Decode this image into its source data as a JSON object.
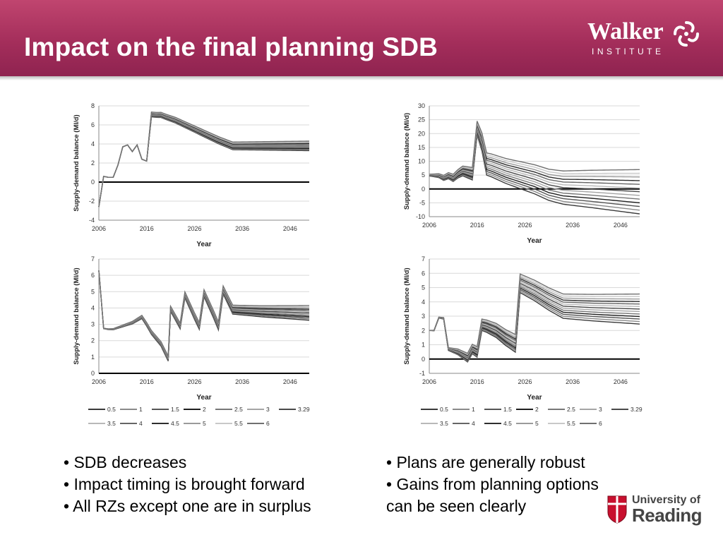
{
  "title": "Impact on the final planning SDB",
  "logos": {
    "walker_name": "Walker",
    "walker_sub": "INSTITUTE",
    "reading_line1": "University of",
    "reading_line2": "Reading"
  },
  "bullets_left": [
    "• SDB decreases",
    "• Impact timing is brought forward",
    "• All RZs except one are in surplus"
  ],
  "bullets_right": [
    "• Plans are generally robust",
    "• Gains from planning options",
    "can be seen clearly"
  ],
  "legend_labels": [
    "0.5",
    "1",
    "1.5",
    "2",
    "2.5",
    "3",
    "3.29",
    "3.5",
    "4",
    "4.5",
    "5",
    "5.5",
    "6"
  ],
  "chart_data": [
    {
      "type": "line",
      "xlabel": "Year",
      "ylabel": "Supply-demand balance (Ml/d)",
      "xlim": [
        2006,
        2050
      ],
      "ylim": [
        -4,
        8
      ],
      "yticks": [
        -4,
        -2,
        0,
        2,
        4,
        6,
        8
      ],
      "xticks": [
        2006,
        2016,
        2026,
        2036,
        2046
      ],
      "base": [
        [
          2006,
          -2.6
        ],
        [
          2007,
          0.6
        ],
        [
          2008,
          0.5
        ],
        [
          2009,
          0.5
        ],
        [
          2010,
          1.8
        ],
        [
          2011,
          3.7
        ],
        [
          2012,
          3.9
        ],
        [
          2013,
          3.2
        ],
        [
          2014,
          3.9
        ],
        [
          2015,
          2.4
        ],
        [
          2016,
          2.2
        ],
        [
          2017,
          7.1
        ],
        [
          2018,
          7.05
        ],
        [
          2019,
          7.05
        ],
        [
          2020,
          6.85
        ],
        [
          2022,
          6.5
        ],
        [
          2025,
          5.8
        ],
        [
          2028,
          5.1
        ],
        [
          2031,
          4.4
        ],
        [
          2034,
          3.8
        ],
        [
          2040,
          3.8
        ],
        [
          2045,
          3.8
        ],
        [
          2050,
          3.8
        ]
      ],
      "spread": [
        [
          2006,
          0
        ],
        [
          2016,
          0
        ],
        [
          2017,
          0.5
        ],
        [
          2034,
          0.8
        ],
        [
          2050,
          1.0
        ]
      ]
    },
    {
      "type": "line",
      "xlabel": "Year",
      "ylabel": "Supply-demand balance (Ml/d)",
      "xlim": [
        2006,
        2050
      ],
      "ylim": [
        -10,
        30
      ],
      "yticks": [
        -10,
        -5,
        0,
        5,
        10,
        15,
        20,
        25,
        30
      ],
      "xticks": [
        2006,
        2016,
        2026,
        2036,
        2046
      ],
      "base": [
        [
          2006,
          5
        ],
        [
          2008,
          4.8
        ],
        [
          2009,
          4
        ],
        [
          2010,
          4.8
        ],
        [
          2011,
          4
        ],
        [
          2012,
          5.5
        ],
        [
          2013,
          6.5
        ],
        [
          2014,
          6
        ],
        [
          2015,
          5.5
        ],
        [
          2016,
          22
        ],
        [
          2017,
          17
        ],
        [
          2018,
          9
        ],
        [
          2019,
          8.5
        ],
        [
          2022,
          6.5
        ],
        [
          2025,
          5
        ],
        [
          2028,
          3.5
        ],
        [
          2031,
          1.5
        ],
        [
          2034,
          0.5
        ],
        [
          2040,
          0
        ],
        [
          2045,
          -0.5
        ],
        [
          2050,
          -1
        ]
      ],
      "spread": [
        [
          2006,
          0.6
        ],
        [
          2012,
          3
        ],
        [
          2016,
          5
        ],
        [
          2018,
          8
        ],
        [
          2034,
          12
        ],
        [
          2050,
          16
        ]
      ]
    },
    {
      "type": "line",
      "xlabel": "Year",
      "ylabel": "Supply-demand balance (Ml/d)",
      "xlim": [
        2006,
        2050
      ],
      "ylim": [
        0,
        7
      ],
      "yticks": [
        0,
        1,
        2,
        3,
        4,
        5,
        6,
        7
      ],
      "xticks": [
        2006,
        2016,
        2026,
        2036,
        2046
      ],
      "base": [
        [
          2006,
          6.3
        ],
        [
          2007,
          2.75
        ],
        [
          2008,
          2.7
        ],
        [
          2009,
          2.7
        ],
        [
          2011,
          2.9
        ],
        [
          2013,
          3.1
        ],
        [
          2015,
          3.45
        ],
        [
          2016,
          3.0
        ],
        [
          2017,
          2.5
        ],
        [
          2019,
          1.8
        ],
        [
          2020,
          1.2
        ],
        [
          2020.5,
          0.9
        ],
        [
          2021,
          3.95
        ],
        [
          2023,
          2.9
        ],
        [
          2024,
          4.8
        ],
        [
          2026,
          3.5
        ],
        [
          2027,
          2.9
        ],
        [
          2028,
          4.9
        ],
        [
          2030,
          3.6
        ],
        [
          2031,
          2.9
        ],
        [
          2032,
          5.1
        ],
        [
          2034,
          3.9
        ],
        [
          2040,
          3.8
        ],
        [
          2045,
          3.75
        ],
        [
          2050,
          3.7
        ]
      ],
      "spread": [
        [
          2006,
          0
        ],
        [
          2015,
          0.2
        ],
        [
          2020,
          0.3
        ],
        [
          2032,
          0.5
        ],
        [
          2050,
          0.9
        ]
      ]
    },
    {
      "type": "line",
      "xlabel": "Year",
      "ylabel": "Supply-demand balance (Ml/d)",
      "xlim": [
        2006,
        2050
      ],
      "ylim": [
        -1,
        7
      ],
      "yticks": [
        -1,
        0,
        1,
        2,
        3,
        4,
        5,
        6,
        7
      ],
      "xticks": [
        2006,
        2016,
        2026,
        2036,
        2046
      ],
      "base": [
        [
          2006,
          2.0
        ],
        [
          2007,
          2.0
        ],
        [
          2008,
          2.9
        ],
        [
          2009,
          2.85
        ],
        [
          2010,
          0.7
        ],
        [
          2012,
          0.5
        ],
        [
          2014,
          0.1
        ],
        [
          2015,
          0.7
        ],
        [
          2016,
          0.5
        ],
        [
          2017,
          2.4
        ],
        [
          2018,
          2.3
        ],
        [
          2020,
          2.0
        ],
        [
          2022,
          1.5
        ],
        [
          2024,
          1.1
        ],
        [
          2025,
          5.3
        ],
        [
          2028,
          4.8
        ],
        [
          2031,
          4.2
        ],
        [
          2034,
          3.7
        ],
        [
          2040,
          3.6
        ],
        [
          2045,
          3.55
        ],
        [
          2050,
          3.5
        ]
      ],
      "spread": [
        [
          2006,
          0
        ],
        [
          2009,
          0.1
        ],
        [
          2014,
          0.6
        ],
        [
          2017,
          0.8
        ],
        [
          2025,
          1.3
        ],
        [
          2034,
          1.7
        ],
        [
          2050,
          2.1
        ]
      ]
    }
  ]
}
